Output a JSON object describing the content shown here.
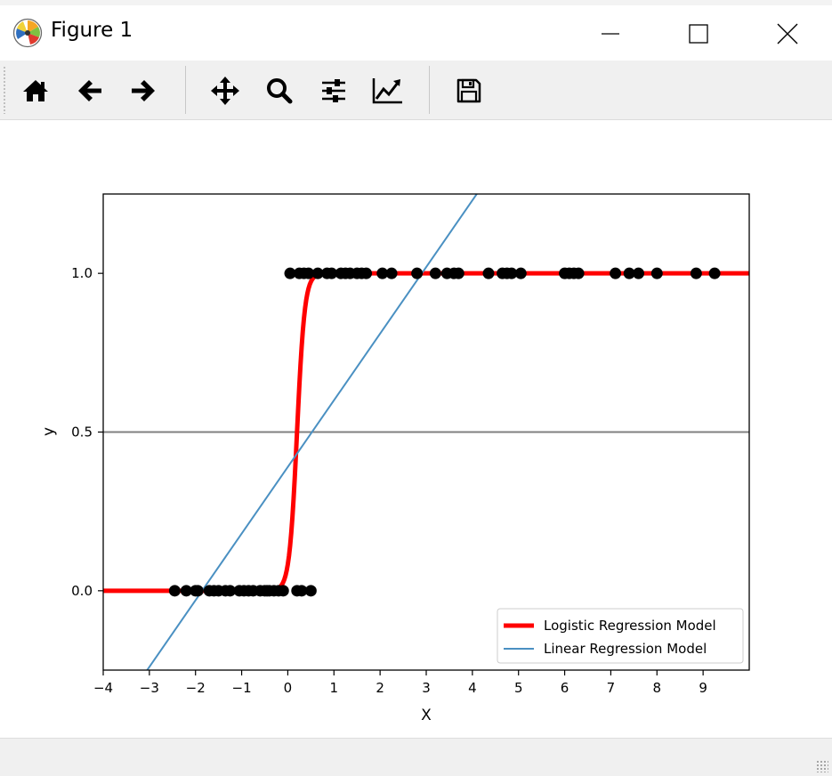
{
  "window": {
    "title": "Figure 1",
    "icon": "matplotlib-logo-icon",
    "controls": [
      "minimize-icon",
      "maximize-icon",
      "close-icon"
    ]
  },
  "toolbar": {
    "buttons": [
      "home-icon",
      "back-arrow-icon",
      "forward-arrow-icon",
      "pan-move-icon",
      "zoom-magnifier-icon",
      "configure-subplots-icon",
      "edit-axis-icon",
      "save-floppy-icon"
    ]
  },
  "colors": {
    "logistic": "#ff0000",
    "linear": "#4a90c2",
    "points": "#000000",
    "threshold": "#808080"
  },
  "chart_data": {
    "type": "scatter",
    "title": "",
    "xlabel": "X",
    "ylabel": "y",
    "xlim": [
      -4,
      10
    ],
    "ylim": [
      -0.25,
      1.25
    ],
    "xticks": [
      -4,
      -3,
      -2,
      -1,
      0,
      1,
      2,
      3,
      4,
      5,
      6,
      7,
      8,
      9
    ],
    "xtick_labels": [
      "−4",
      "−3",
      "−2",
      "−1",
      "0",
      "1",
      "2",
      "3",
      "4",
      "5",
      "6",
      "7",
      "8",
      "9"
    ],
    "yticks": [
      0.0,
      0.5,
      1.0
    ],
    "ytick_labels": [
      "0.0",
      "0.5",
      "1.0"
    ],
    "grid": false,
    "legend_position": "lower-right",
    "threshold_y": 0.5,
    "points": {
      "x0": [
        -2.45,
        -2.2,
        -2.0,
        -1.95,
        -1.7,
        -1.6,
        -1.5,
        -1.35,
        -1.25,
        -1.05,
        -0.95,
        -0.85,
        -0.75,
        -0.6,
        -0.5,
        -0.45,
        -0.4,
        -0.3,
        -0.2,
        -0.1,
        0.2,
        0.3,
        0.5
      ],
      "y0": 0,
      "x1": [
        0.05,
        0.25,
        0.35,
        0.45,
        0.65,
        0.85,
        0.95,
        1.15,
        1.25,
        1.35,
        1.5,
        1.6,
        1.7,
        2.05,
        2.25,
        2.8,
        3.2,
        3.45,
        3.6,
        3.7,
        4.35,
        4.65,
        4.75,
        4.85,
        5.05,
        6.0,
        6.1,
        6.2,
        6.3,
        7.1,
        7.4,
        7.6,
        8.0,
        8.85,
        9.25
      ],
      "y1": 1
    },
    "series": [
      {
        "name": "Logistic Regression Model",
        "type": "logistic",
        "midpoint": 0.2,
        "steepness": 12
      },
      {
        "name": "Linear Regression Model",
        "type": "linear",
        "slope": 0.21,
        "intercept": 0.39
      }
    ]
  }
}
